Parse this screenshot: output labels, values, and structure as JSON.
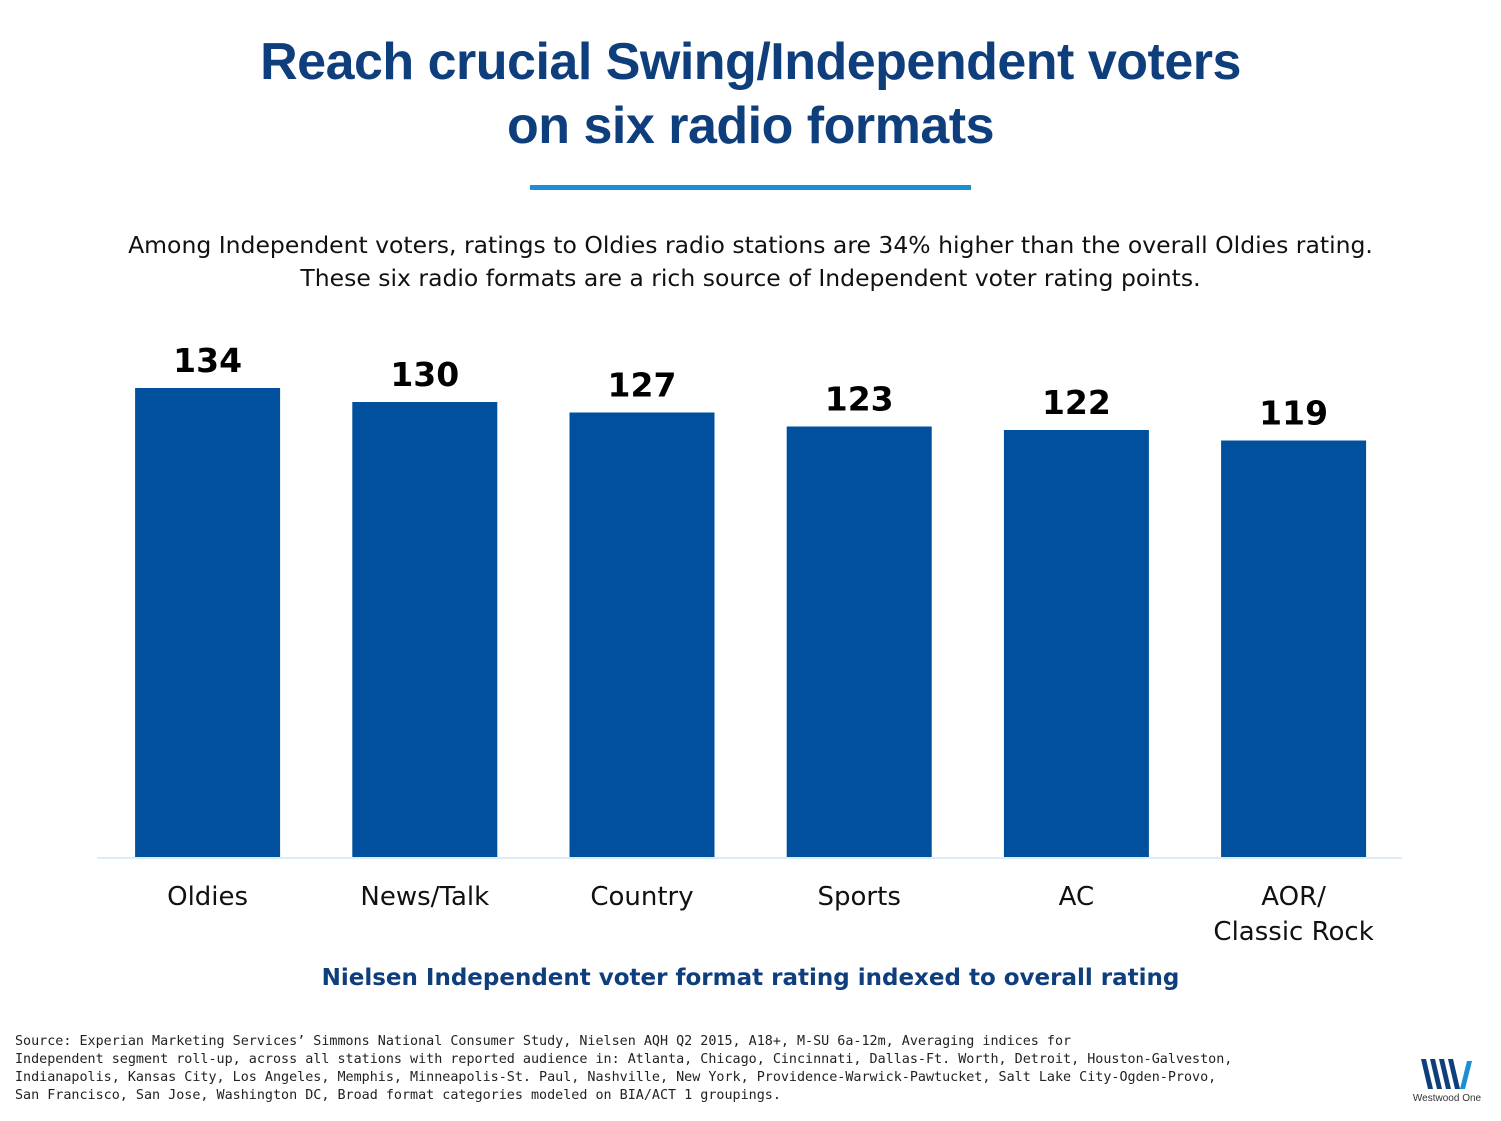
{
  "header": {
    "title_line1": "Reach crucial Swing/Independent voters",
    "title_line2": "on six radio formats",
    "subtitle_line1": "Among Independent voters, ratings to Oldies radio stations are 34% higher than the overall Oldies rating.",
    "subtitle_line2": "These six radio formats are a rich source of Independent voter rating points."
  },
  "chart_data": {
    "type": "bar",
    "categories": [
      [
        "Oldies"
      ],
      [
        "News/Talk"
      ],
      [
        "Country"
      ],
      [
        "Sports"
      ],
      [
        "AC"
      ],
      [
        "AOR/",
        "Classic Rock"
      ]
    ],
    "values": [
      134,
      130,
      127,
      123,
      122,
      119
    ],
    "value_labels": [
      "134",
      "130",
      "127",
      "123",
      "122",
      "119"
    ],
    "ylim": [
      0,
      134
    ],
    "xlabel": "Nielsen Independent voter format rating indexed to overall rating",
    "ylabel": "",
    "grid": false,
    "bar_color": "#00509d",
    "axis_color": "#dbeef8"
  },
  "footer": {
    "source_lines": [
      "Source: Experian Marketing Services’ Simmons National Consumer Study, Nielsen AQH Q2 2015, A18+, M-SU 6a-12m, Averaging indices for",
      "Independent segment roll-up, across all stations with reported audience in: Atlanta, Chicago, Cincinnati, Dallas-Ft. Worth, Detroit, Houston-Galveston,",
      "Indianapolis, Kansas City, Los Angeles, Memphis, Minneapolis-St. Paul, Nashville, New York, Providence-Warwick-Pawtucket, Salt Lake City-Ogden-Provo,",
      "San Francisco, San Jose, Washington DC, Broad format categories modeled on BIA/ACT 1 groupings."
    ],
    "logo_text": "Westwood One",
    "logo_icon": "westwood-one-logo-icon",
    "logo_color": "#0f3e7d"
  }
}
